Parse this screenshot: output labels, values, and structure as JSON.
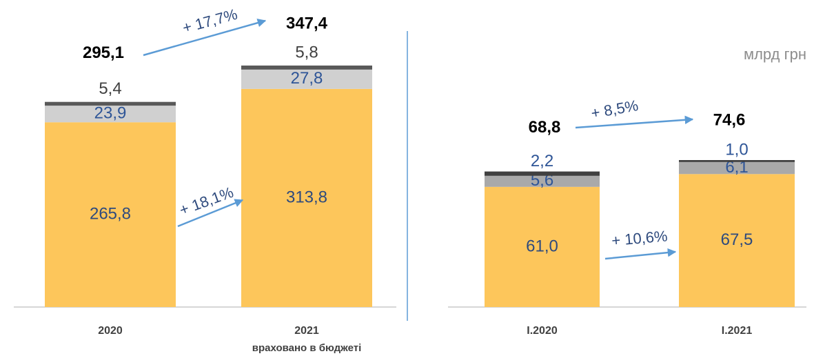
{
  "chart_data": [
    {
      "type": "stacked-bar",
      "categories": [
        "2020",
        "2021"
      ],
      "category_note": "враховано в бюджеті",
      "series": [
        {
          "color": "#fdc65b",
          "label_color": "#2e4a7d",
          "values": [
            265.8,
            313.8
          ],
          "value_labels": [
            "265,8",
            "313,8"
          ]
        },
        {
          "color": "#d0d0d0",
          "label_color": "#2e5597",
          "values": [
            23.9,
            27.8
          ],
          "value_labels": [
            "23,9",
            "27,8"
          ]
        },
        {
          "color": "#595959",
          "label_color": "#404040",
          "values": [
            5.4,
            5.8
          ],
          "value_labels": [
            "5,4",
            "5,8"
          ]
        }
      ],
      "totals": {
        "values": [
          295.1,
          347.4
        ],
        "value_labels": [
          "295,1",
          "347,4"
        ]
      },
      "annotations": [
        "+ 17,7%",
        "+ 18,1%"
      ]
    },
    {
      "type": "stacked-bar",
      "categories": [
        "I.2020",
        "I.2021"
      ],
      "unit": "млрд грн",
      "series": [
        {
          "color": "#fdc65b",
          "label_color": "#2e4a7d",
          "values": [
            61.0,
            67.5
          ],
          "value_labels": [
            "61,0",
            "67,5"
          ]
        },
        {
          "color": "#a9a9a9",
          "label_color": "#2e5597",
          "values": [
            5.6,
            6.1
          ],
          "value_labels": [
            "5,6",
            "6,1"
          ]
        },
        {
          "color": "#404040",
          "label_color": "#2e5597",
          "values": [
            2.2,
            1.0
          ],
          "value_labels": [
            "2,2",
            "1,0"
          ]
        }
      ],
      "totals": {
        "values": [
          68.8,
          74.6
        ],
        "value_labels": [
          "68,8",
          "74,6"
        ]
      },
      "annotations": [
        "+ 8,5%",
        "+ 10,6%"
      ]
    }
  ]
}
